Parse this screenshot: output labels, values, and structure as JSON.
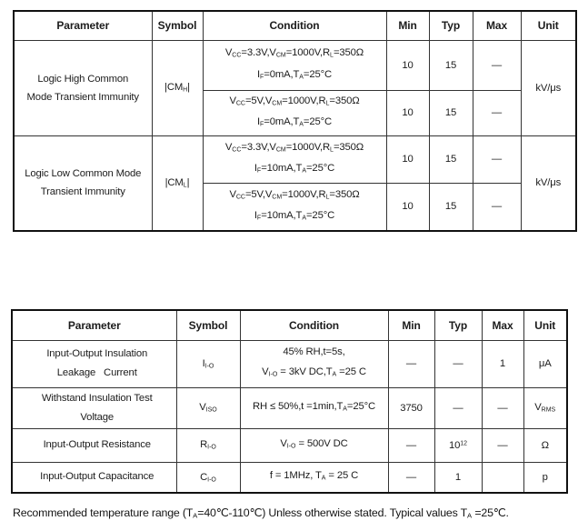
{
  "page": {
    "background": "#ffffff",
    "text_color": "#1c1c1c",
    "inner_border_color": "#333333",
    "outer_border_color": "#111111"
  },
  "table1": {
    "headers": [
      "Parameter",
      "Symbol",
      "Condition",
      "Min",
      "Typ",
      "Max",
      "Unit"
    ],
    "groups": [
      {
        "parameter": "Logic High Common\nMode Transient Immunity",
        "symbol": "|CM~H~|",
        "unit": "kV/μs",
        "rows": [
          {
            "condition": "V~CC~=3.3V,V~CM~=1000V,R~L~=350Ω\nI~F~=0mA,T~A~=25°C",
            "min": "10",
            "typ": "15",
            "max": "—"
          },
          {
            "condition": "V~CC~=5V,V~CM~=1000V,R~L~=350Ω\nI~F~=0mA,T~A~=25°C",
            "min": "10",
            "typ": "15",
            "max": "—"
          }
        ]
      },
      {
        "parameter": "Logic Low Common Mode\nTransient Immunity",
        "symbol": "|CM~L~|",
        "unit": "kV/μs",
        "rows": [
          {
            "condition": "V~CC~=3.3V,V~CM~=1000V,R~L~=350Ω\nI~F~=10mA,T~A~=25°C",
            "min": "10",
            "typ": "15",
            "max": "—"
          },
          {
            "condition": "V~CC~=5V,V~CM~=1000V,R~L~=350Ω\nI~F~=10mA,T~A~=25°C",
            "min": "10",
            "typ": "15",
            "max": "—"
          }
        ]
      }
    ]
  },
  "table2": {
    "headers": [
      "Parameter",
      "Symbol",
      "Condition",
      "Min",
      "Typ",
      "Max",
      "Unit"
    ],
    "rows": [
      {
        "parameter": "Input-Output Insulation\nLeakage   Current",
        "symbol": "I~I-O~",
        "condition": "45% RH,t=5s,\nV~I-O~ = 3kV DC,T~A~ =25 C",
        "min": "—",
        "typ": "—",
        "max": "1",
        "unit": "μA"
      },
      {
        "parameter": "Withstand Insulation Test\nVoltage",
        "symbol": "V~ISO~",
        "condition": "RH ≤ 50%,t =1min,T~A~=25°C",
        "min": "3750",
        "typ": "—",
        "max": "—",
        "unit": "V~RMS~"
      },
      {
        "parameter": "Input-Output Resistance",
        "symbol": "R~I-O~",
        "condition": "V~I-O~ = 500V DC",
        "min": "—",
        "typ": "10^12^",
        "max": "—",
        "unit": "Ω"
      },
      {
        "parameter": "Input-Output Capacitance",
        "symbol": "C~I-O~",
        "condition": "f = 1MHz, T~A~ = 25 C",
        "min": "—",
        "typ": "1",
        "max": "",
        "unit": "p"
      }
    ]
  },
  "footer": {
    "note": "Recommended temperature range (T~A~=40℃-110℃) Unless otherwise stated. Typical values T~A~ =25℃."
  }
}
